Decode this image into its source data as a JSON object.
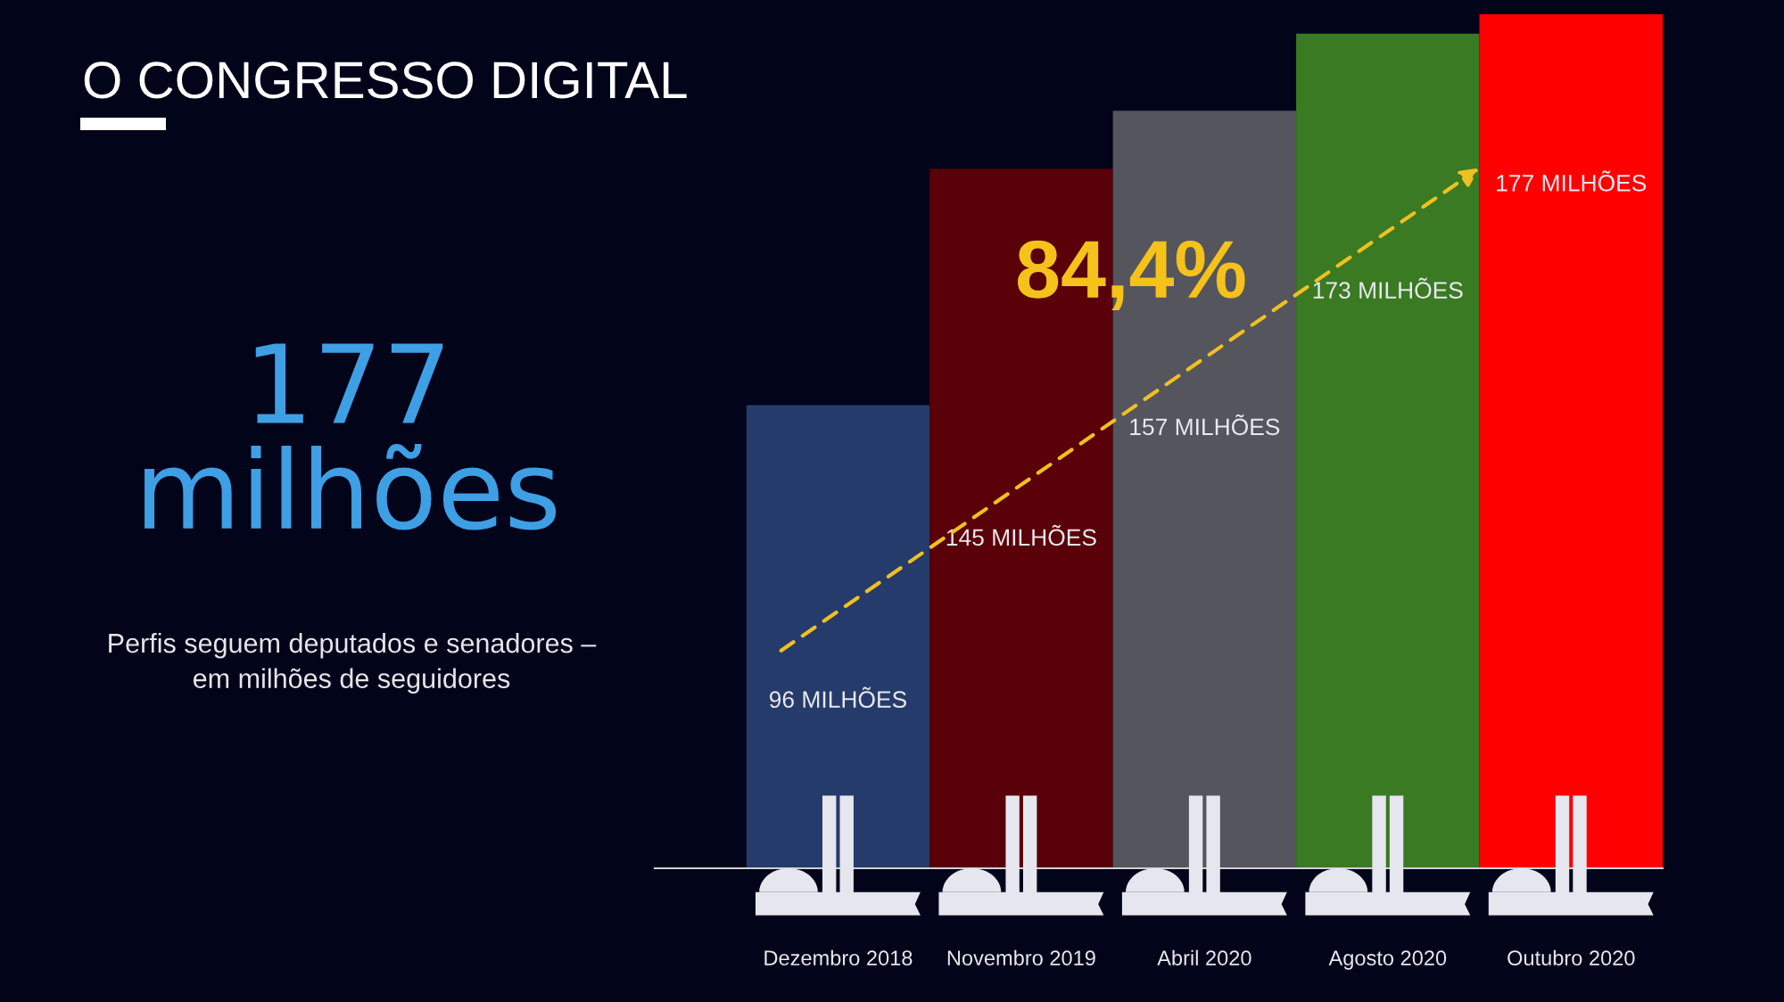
{
  "chart_data": {
    "type": "bar",
    "title": "O CONGRESSO DIGITAL",
    "subtitle": "Perfis seguem deputados e senadores –\nem milhões de seguidores",
    "categories": [
      "Dezembro 2018",
      "Novembro 2019",
      "Abril 2020",
      "Agosto 2020",
      "Outubro 2020"
    ],
    "values": [
      96,
      145,
      157,
      173,
      177
    ],
    "colors": [
      "#253b6b",
      "#5a0008",
      "#54555d",
      "#3a7a22",
      "#ff0000"
    ],
    "value_labels": [
      "96 MILHÕES",
      "145 MILHÕES",
      "157 MILHÕES",
      "173 MILHÕES",
      "177 MILHÕES"
    ],
    "annotations": [
      "84,4%",
      "177\nmilhões"
    ],
    "grid": false,
    "legend": false
  }
}
